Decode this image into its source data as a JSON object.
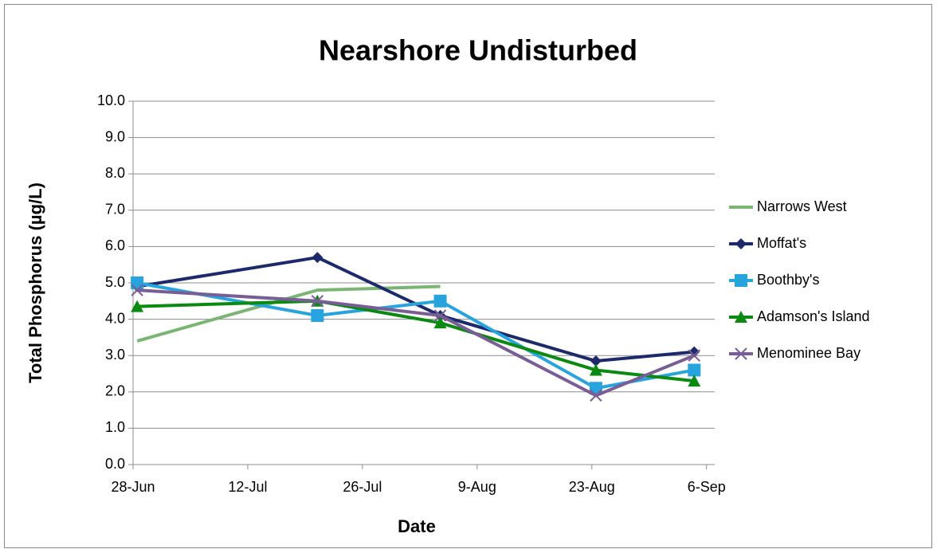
{
  "chart_data": {
    "type": "line",
    "title": "Nearshore Undisturbed",
    "x_label": "Date",
    "y_label": "Total Phosphorus (µg/L)",
    "x": [
      "06-28",
      "07-20",
      "08-04",
      "08-23",
      "09-04"
    ],
    "xlim": [
      "06-28",
      "09-07"
    ],
    "xticks": [
      {
        "value": "06-28",
        "label": "28-Jun"
      },
      {
        "value": "07-12",
        "label": "12-Jul"
      },
      {
        "value": "07-26",
        "label": "26-Jul"
      },
      {
        "value": "08-09",
        "label": "9-Aug"
      },
      {
        "value": "08-23",
        "label": "23-Aug"
      },
      {
        "value": "09-06",
        "label": "6-Sep"
      }
    ],
    "ylim": [
      0,
      10
    ],
    "yticks": [
      {
        "value": 0,
        "label": "0.0"
      },
      {
        "value": 1,
        "label": "1.0"
      },
      {
        "value": 2,
        "label": "2.0"
      },
      {
        "value": 3,
        "label": "3.0"
      },
      {
        "value": 4,
        "label": "4.0"
      },
      {
        "value": 5,
        "label": "5.0"
      },
      {
        "value": 6,
        "label": "6.0"
      },
      {
        "value": 7,
        "label": "7.0"
      },
      {
        "value": 8,
        "label": "8.0"
      },
      {
        "value": 9,
        "label": "9.0"
      },
      {
        "value": 10,
        "label": "10.0"
      }
    ],
    "grid": true,
    "legend": "right",
    "series": [
      {
        "name": "Narrows West",
        "color": "#7ab673",
        "marker": "none",
        "values": [
          3.4,
          4.8,
          4.9,
          null,
          null
        ]
      },
      {
        "name": "Moffat's",
        "color": "#1c2a6b",
        "marker": "diamond",
        "values": [
          4.9,
          5.7,
          4.1,
          2.85,
          3.1
        ]
      },
      {
        "name": "Boothby's",
        "color": "#27a4de",
        "marker": "square",
        "values": [
          5.0,
          4.1,
          4.5,
          2.1,
          2.6
        ]
      },
      {
        "name": "Adamson's Island",
        "color": "#0b8a12",
        "marker": "triangle",
        "values": [
          4.35,
          4.5,
          3.9,
          2.6,
          2.3
        ]
      },
      {
        "name": "Menominee Bay",
        "color": "#795d96",
        "marker": "x",
        "values": [
          4.8,
          4.5,
          4.1,
          1.9,
          3.0
        ]
      }
    ]
  }
}
